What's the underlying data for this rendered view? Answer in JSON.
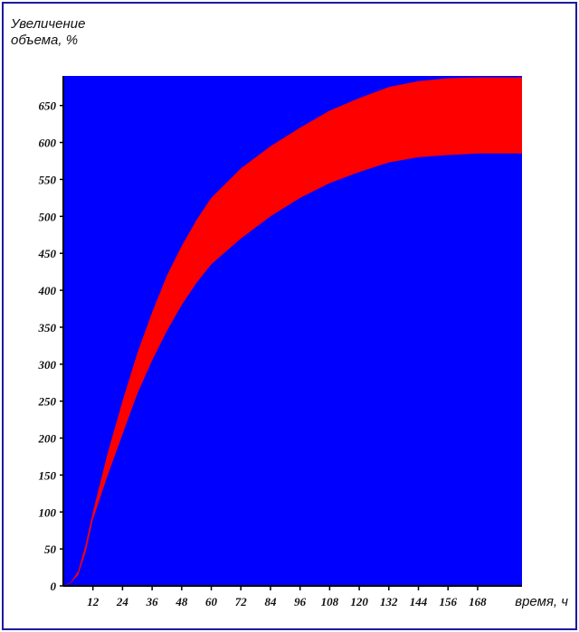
{
  "chart_data": {
    "type": "area",
    "ylabel_line1": "Увеличение",
    "ylabel_line2": "объема, %",
    "xlabel": "время, ч",
    "ylim": [
      0,
      690
    ],
    "xlim": [
      0,
      186
    ],
    "y_ticks": [
      0,
      50,
      100,
      150,
      200,
      250,
      300,
      350,
      400,
      450,
      500,
      550,
      600,
      650
    ],
    "x_ticks": [
      12,
      24,
      36,
      48,
      60,
      72,
      84,
      96,
      108,
      120,
      132,
      144,
      156,
      168
    ],
    "colors": {
      "background": "#0000ff",
      "band": "#ff0000"
    },
    "series": [
      {
        "x": [
          0,
          3,
          6,
          9,
          12,
          18,
          24,
          30,
          36,
          42,
          48,
          54,
          60,
          72,
          84,
          96,
          108,
          120,
          132,
          144,
          156,
          168,
          186
        ],
        "values": [
          0,
          5,
          20,
          55,
          100,
          180,
          250,
          315,
          370,
          420,
          460,
          495,
          525,
          565,
          595,
          620,
          643,
          660,
          675,
          683,
          687,
          688,
          688
        ]
      },
      {
        "x": [
          0,
          3,
          6,
          9,
          12,
          18,
          24,
          30,
          36,
          42,
          48,
          54,
          60,
          72,
          84,
          96,
          108,
          120,
          132,
          144,
          156,
          168,
          186
        ],
        "values": [
          0,
          4,
          15,
          45,
          90,
          150,
          205,
          260,
          305,
          345,
          380,
          410,
          435,
          470,
          500,
          525,
          545,
          560,
          573,
          580,
          583,
          585,
          585
        ]
      }
    ]
  }
}
